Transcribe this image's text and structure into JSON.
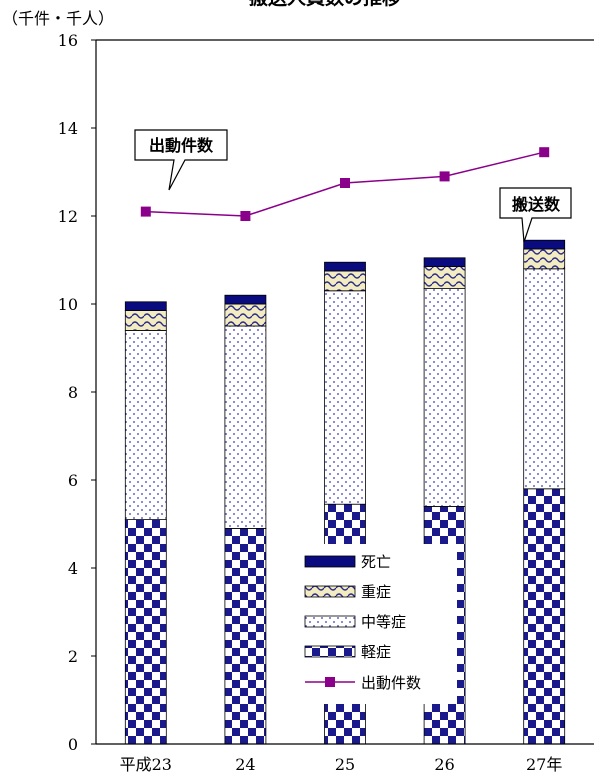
{
  "chart_data": {
    "type": "bar",
    "title": "搬送人員数の推移",
    "unit_label": "（千件・千人）",
    "categories": [
      "平成23",
      "24",
      "25",
      "26",
      "27年"
    ],
    "ylim": [
      0,
      16
    ],
    "yticks": [
      0,
      2,
      4,
      6,
      8,
      10,
      12,
      14,
      16
    ],
    "stacked": true,
    "series": [
      {
        "name": "軽症",
        "values": [
          5.1,
          4.9,
          5.45,
          5.4,
          5.8
        ],
        "color": "#1a1a8c",
        "pattern": "checker"
      },
      {
        "name": "中等症",
        "values": [
          4.3,
          4.6,
          4.85,
          4.95,
          5.0
        ],
        "color": "#3a3ab8",
        "pattern": "dots"
      },
      {
        "name": "重症",
        "values": [
          0.45,
          0.5,
          0.45,
          0.5,
          0.45
        ],
        "color": "#d8c870",
        "pattern": "wave"
      },
      {
        "name": "死亡",
        "values": [
          0.2,
          0.2,
          0.2,
          0.2,
          0.2
        ],
        "color": "#0b0b80",
        "pattern": "solid"
      }
    ],
    "line_series": {
      "name": "出動件数",
      "values": [
        12.1,
        12.0,
        12.75,
        12.9,
        13.45
      ],
      "color": "#8b008b"
    },
    "callouts": [
      {
        "text": "出動件数",
        "target": "line"
      },
      {
        "text": "搬送数",
        "target": "bars"
      }
    ],
    "legend_position": "center-bottom"
  }
}
